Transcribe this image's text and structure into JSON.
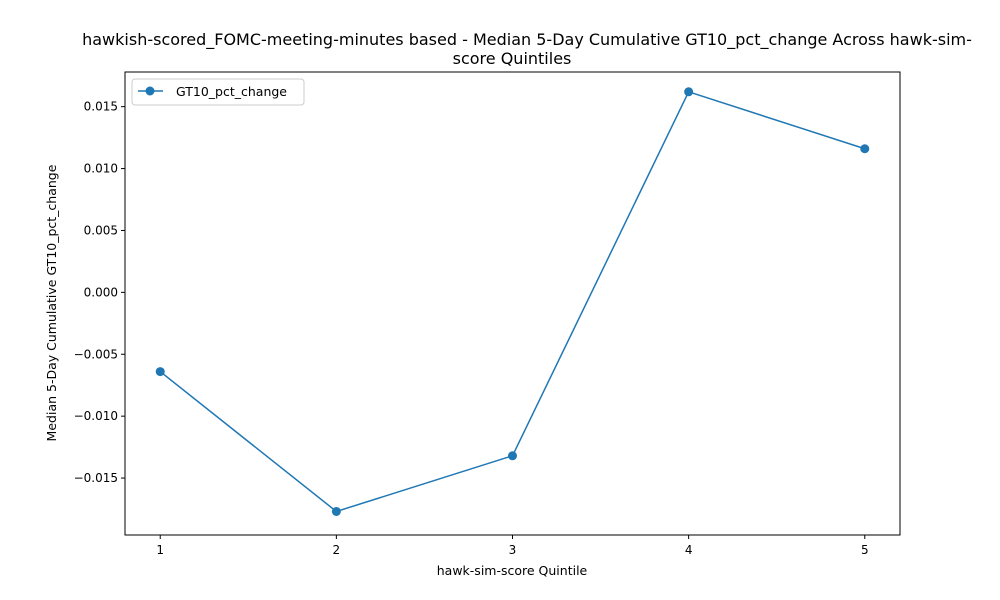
{
  "chart_data": {
    "type": "line",
    "title_lines": [
      "hawkish-scored_FOMC-meeting-minutes based - Median 5-Day Cumulative GT10_pct_change Across hawk-sim-",
      "score Quintiles"
    ],
    "xlabel": "hawk-sim-score Quintile",
    "ylabel": "Median 5-Day Cumulative GT10_pct_change",
    "x": [
      1,
      2,
      3,
      4,
      5
    ],
    "x_tick_labels": [
      "1",
      "2",
      "3",
      "4",
      "5"
    ],
    "y_tick_values": [
      -0.015,
      -0.01,
      -0.005,
      0,
      0.005,
      0.01,
      0.015
    ],
    "y_tick_labels": [
      "−0.015",
      "−0.010",
      "−0.005",
      "0.000",
      "0.005",
      "0.010",
      "0.015"
    ],
    "xlim": [
      0.8,
      5.2
    ],
    "ylim": [
      -0.0196,
      0.0178
    ],
    "grid": false,
    "legend_position": "top-left",
    "series": [
      {
        "name": "GT10_pct_change",
        "color": "#1f77b4",
        "marker": "circle",
        "values": [
          -0.0064,
          -0.0177,
          -0.0132,
          0.0162,
          0.0116
        ]
      }
    ]
  }
}
